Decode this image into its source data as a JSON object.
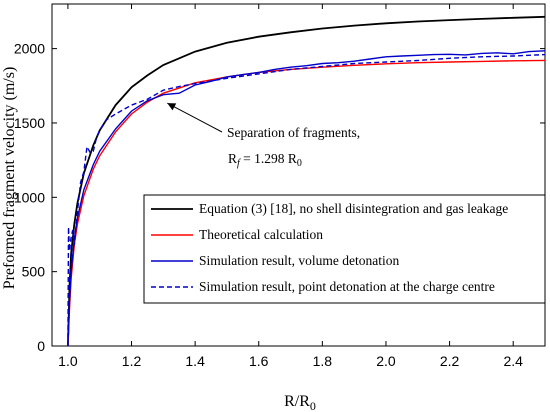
{
  "chart_data": {
    "type": "line",
    "xlabel": "R/R0",
    "ylabel": "Preformed fragment velocity (m/s)",
    "xlim": [
      0.95,
      2.5
    ],
    "ylim": [
      0,
      2300
    ],
    "xticks": [
      1.0,
      1.2,
      1.4,
      1.6,
      1.8,
      2.0,
      2.2,
      2.4
    ],
    "xtick_labels": [
      "1.0",
      "1.2",
      "1.4",
      "1.6",
      "1.8",
      "2.0",
      "2.2",
      "2.4"
    ],
    "yticks": [
      0,
      500,
      1000,
      1500,
      2000
    ],
    "ytick_labels": [
      "0",
      "500",
      "1000",
      "1500",
      "2000"
    ],
    "grid": false,
    "legend_position": "bottom-right",
    "series": [
      {
        "name": "Equation (3) [18], no shell disintegration and gas leakage",
        "color": "#000000",
        "style": "solid",
        "x": [
          1.0,
          1.005,
          1.01,
          1.02,
          1.03,
          1.05,
          1.08,
          1.1,
          1.15,
          1.2,
          1.25,
          1.3,
          1.4,
          1.5,
          1.6,
          1.7,
          1.8,
          1.9,
          2.0,
          2.1,
          2.2,
          2.3,
          2.4,
          2.5
        ],
        "y": [
          0,
          400,
          620,
          820,
          960,
          1160,
          1350,
          1450,
          1620,
          1740,
          1820,
          1890,
          1980,
          2040,
          2080,
          2110,
          2135,
          2155,
          2170,
          2182,
          2192,
          2200,
          2207,
          2214
        ]
      },
      {
        "name": "Theoretical calculation",
        "color": "#ff0000",
        "style": "solid",
        "x": [
          1.0,
          1.005,
          1.01,
          1.02,
          1.03,
          1.05,
          1.08,
          1.1,
          1.15,
          1.2,
          1.25,
          1.3,
          1.4,
          1.5,
          1.6,
          1.7,
          1.8,
          1.9,
          2.0,
          2.1,
          2.2,
          2.3,
          2.4,
          2.5
        ],
        "y": [
          0,
          250,
          450,
          680,
          820,
          1010,
          1190,
          1280,
          1440,
          1560,
          1640,
          1700,
          1770,
          1810,
          1840,
          1860,
          1875,
          1888,
          1898,
          1905,
          1910,
          1914,
          1918,
          1921
        ]
      },
      {
        "name": "Simulation result, volume detonation",
        "color": "#0000cc",
        "style": "solid",
        "x": [
          1.0,
          1.005,
          1.01,
          1.02,
          1.03,
          1.05,
          1.08,
          1.1,
          1.15,
          1.2,
          1.25,
          1.3,
          1.35,
          1.4,
          1.45,
          1.5,
          1.55,
          1.6,
          1.65,
          1.7,
          1.75,
          1.8,
          1.85,
          1.9,
          1.95,
          2.0,
          2.05,
          2.1,
          2.15,
          2.2,
          2.25,
          2.3,
          2.35,
          2.4,
          2.45,
          2.5
        ],
        "y": [
          0,
          300,
          500,
          720,
          860,
          1050,
          1220,
          1310,
          1460,
          1580,
          1650,
          1690,
          1700,
          1755,
          1780,
          1810,
          1825,
          1840,
          1860,
          1875,
          1885,
          1900,
          1905,
          1915,
          1930,
          1945,
          1950,
          1955,
          1960,
          1962,
          1958,
          1968,
          1972,
          1965,
          1980,
          1985
        ]
      },
      {
        "name": "Simulation result, point detonation at the charge centre",
        "color": "#0000cc",
        "style": "dashed",
        "x": [
          1.0,
          1.002,
          1.005,
          1.01,
          1.015,
          1.02,
          1.03,
          1.04,
          1.05,
          1.06,
          1.07,
          1.08,
          1.09,
          1.1,
          1.12,
          1.15,
          1.2,
          1.25,
          1.3,
          1.35,
          1.4,
          1.5,
          1.6,
          1.7,
          1.8,
          1.9,
          2.0,
          2.1,
          2.2,
          2.3,
          2.4,
          2.5
        ],
        "y": [
          0,
          800,
          640,
          730,
          780,
          680,
          900,
          1100,
          1170,
          1340,
          1300,
          1310,
          1400,
          1450,
          1520,
          1560,
          1620,
          1660,
          1720,
          1745,
          1765,
          1800,
          1830,
          1860,
          1880,
          1900,
          1910,
          1920,
          1935,
          1945,
          1950,
          1960
        ]
      }
    ],
    "annotation": {
      "text": "Separation of fragments,",
      "formula": "Rf = 1.298 R0",
      "arrow_to": [
        1.3,
        1.66
      ]
    }
  }
}
